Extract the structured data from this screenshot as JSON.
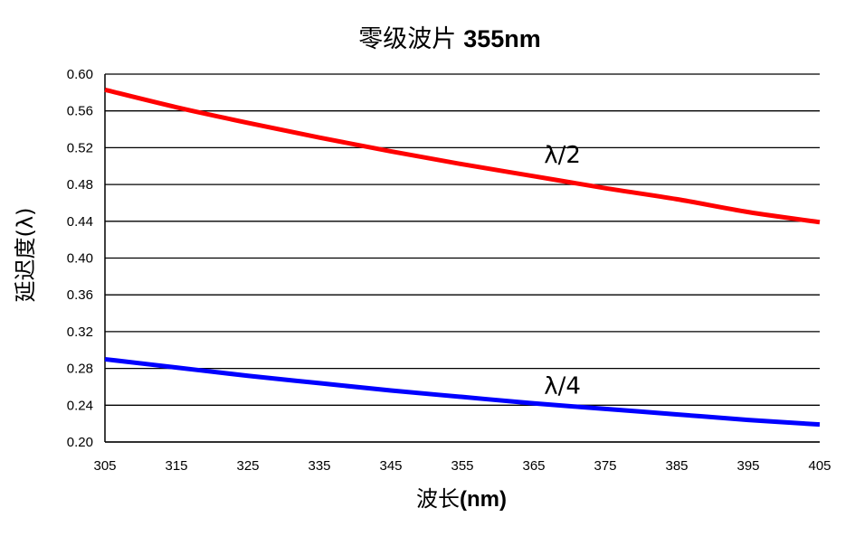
{
  "chart_data": {
    "type": "line",
    "title_cjk": "零级波片",
    "title_bold": "355nm",
    "xlabel_cjk": "波长",
    "xlabel_unit": "(nm)",
    "ylabel": "延迟度(λ)",
    "xlim": [
      305,
      405
    ],
    "ylim": [
      0.2,
      0.6
    ],
    "x_ticks": [
      "305",
      "315",
      "325",
      "335",
      "345",
      "355",
      "365",
      "375",
      "385",
      "395",
      "405"
    ],
    "y_ticks": [
      "0.20",
      "0.24",
      "0.28",
      "0.32",
      "0.36",
      "0.40",
      "0.44",
      "0.48",
      "0.52",
      "0.56",
      "0.60"
    ],
    "grid": "horizontal",
    "series": [
      {
        "name": "λ/2",
        "color": "#ff0000",
        "x": [
          305,
          315,
          325,
          335,
          345,
          355,
          365,
          375,
          385,
          395,
          405
        ],
        "y": [
          0.583,
          0.564,
          0.547,
          0.531,
          0.516,
          0.502,
          0.489,
          0.476,
          0.464,
          0.45,
          0.439
        ]
      },
      {
        "name": "λ/4",
        "color": "#0000ff",
        "x": [
          305,
          315,
          325,
          335,
          345,
          355,
          365,
          375,
          385,
          395,
          405
        ],
        "y": [
          0.29,
          0.281,
          0.272,
          0.264,
          0.256,
          0.249,
          0.242,
          0.236,
          0.23,
          0.224,
          0.219
        ]
      }
    ]
  }
}
